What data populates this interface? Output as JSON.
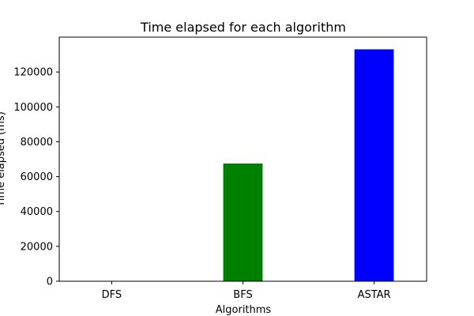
{
  "chart_data": {
    "type": "bar",
    "title": "Time elapsed for each algorithm",
    "xlabel": "Algorithms",
    "ylabel": "Time elapsed (ms)",
    "categories": [
      "DFS",
      "BFS",
      "ASTAR"
    ],
    "values": [
      90,
      67500,
      133000
    ],
    "colors": [
      "#ff0000",
      "#008000",
      "#0000ff"
    ],
    "ylim": [
      0,
      140000
    ],
    "yticks": [
      0,
      20000,
      40000,
      60000,
      80000,
      100000,
      120000
    ],
    "ytick_labels": [
      "0",
      "20000",
      "40000",
      "60000",
      "80000",
      "100000",
      "120000"
    ],
    "grid": false,
    "legend": "none"
  }
}
